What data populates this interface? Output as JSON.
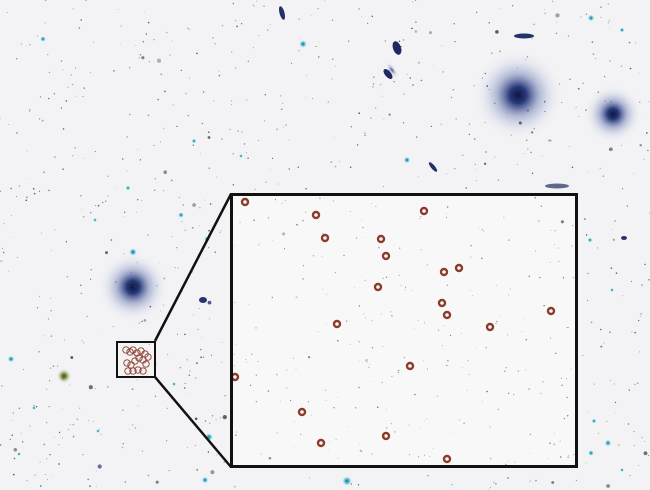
{
  "image": {
    "subject": "galaxy-field-with-zoomed-inset",
    "colors": {
      "background": "#f3f3f5",
      "galaxy_core": "#1a2a66",
      "galaxy_halo": "#5a6aa8",
      "cyan_star": "#19a7c9",
      "marker": "#8b3a2c",
      "frame": "#111111"
    },
    "inset_marker_count": 22,
    "zoom_region_marker_count": 17
  }
}
